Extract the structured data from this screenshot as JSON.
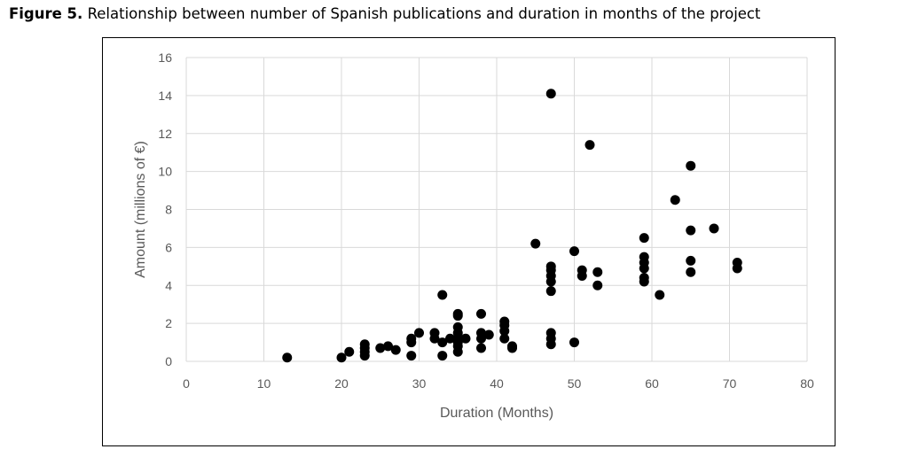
{
  "caption": {
    "label": "Figure 5.",
    "text": "Relationship between number of Spanish publications and duration in months of the project"
  },
  "chart_data": {
    "type": "scatter",
    "xlabel": "Duration (Months)",
    "ylabel": "Amount (millions of €)",
    "xlim": [
      0,
      80
    ],
    "ylim": [
      0,
      16
    ],
    "xticks": [
      0,
      10,
      20,
      30,
      40,
      50,
      60,
      70,
      80
    ],
    "yticks": [
      0,
      2,
      4,
      6,
      8,
      10,
      12,
      14,
      16
    ],
    "grid": true,
    "legend": "none",
    "marker_color": "#000000",
    "grid_color": "#d9d9d9",
    "series": [
      {
        "points": [
          [
            13,
            0.2
          ],
          [
            20,
            0.2
          ],
          [
            21,
            0.5
          ],
          [
            23,
            0.3
          ],
          [
            23,
            0.5
          ],
          [
            23,
            0.7
          ],
          [
            23,
            0.9
          ],
          [
            25,
            0.7
          ],
          [
            26,
            0.8
          ],
          [
            27,
            0.6
          ],
          [
            29,
            0.3
          ],
          [
            29,
            1.0
          ],
          [
            29,
            1.2
          ],
          [
            30,
            1.5
          ],
          [
            32,
            1.2
          ],
          [
            32,
            1.5
          ],
          [
            33,
            0.3
          ],
          [
            33,
            1.0
          ],
          [
            33,
            3.5
          ],
          [
            34,
            1.2
          ],
          [
            35,
            0.5
          ],
          [
            35,
            0.8
          ],
          [
            35,
            1.0
          ],
          [
            35,
            1.2
          ],
          [
            35,
            1.5
          ],
          [
            35,
            1.8
          ],
          [
            35,
            2.4
          ],
          [
            35,
            2.5
          ],
          [
            36,
            1.2
          ],
          [
            38,
            0.7
          ],
          [
            38,
            1.2
          ],
          [
            38,
            1.5
          ],
          [
            38,
            2.5
          ],
          [
            39,
            1.4
          ],
          [
            41,
            1.2
          ],
          [
            41,
            1.6
          ],
          [
            41,
            1.9
          ],
          [
            41,
            2.1
          ],
          [
            42,
            0.7
          ],
          [
            42,
            0.8
          ],
          [
            45,
            6.2
          ],
          [
            47,
            0.9
          ],
          [
            47,
            1.2
          ],
          [
            47,
            1.5
          ],
          [
            47,
            3.7
          ],
          [
            47,
            4.2
          ],
          [
            47,
            4.5
          ],
          [
            47,
            4.8
          ],
          [
            47,
            5.0
          ],
          [
            47,
            14.1
          ],
          [
            50,
            1.0
          ],
          [
            50,
            5.8
          ],
          [
            51,
            4.5
          ],
          [
            51,
            4.8
          ],
          [
            52,
            11.4
          ],
          [
            53,
            4.0
          ],
          [
            53,
            4.7
          ],
          [
            59,
            4.2
          ],
          [
            59,
            4.4
          ],
          [
            59,
            4.9
          ],
          [
            59,
            5.2
          ],
          [
            59,
            5.5
          ],
          [
            59,
            6.5
          ],
          [
            61,
            3.5
          ],
          [
            63,
            8.5
          ],
          [
            65,
            4.7
          ],
          [
            65,
            5.3
          ],
          [
            65,
            6.9
          ],
          [
            65,
            10.3
          ],
          [
            68,
            7.0
          ],
          [
            71,
            4.9
          ],
          [
            71,
            5.2
          ]
        ]
      }
    ]
  }
}
